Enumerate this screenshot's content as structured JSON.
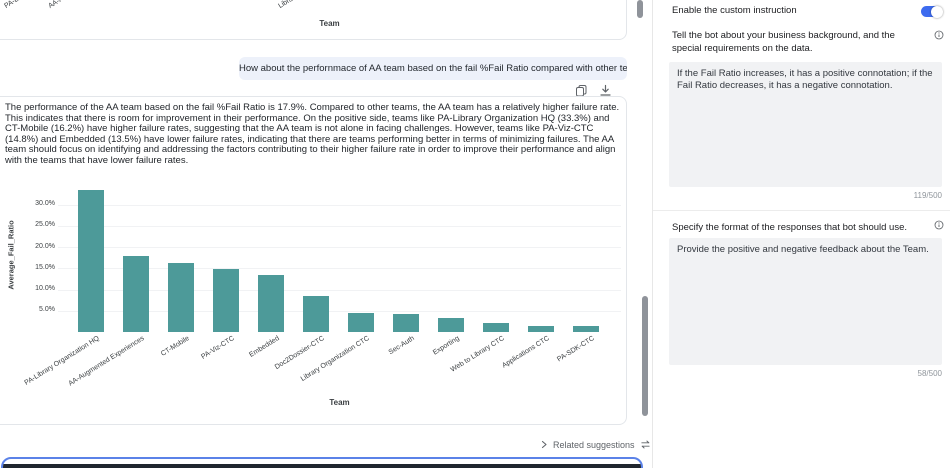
{
  "colors": {
    "bar": "#4d9a99",
    "toggle_on": "#3d6bef",
    "input_border": "#5b82e8",
    "bubble_bg": "#edf1fa"
  },
  "previous_chart": {
    "visible_x_labels": [
      "PA-Library Organization HQ",
      "AA-Augmented Experiences",
      "Library Organization CTC"
    ],
    "xlabel": "Team"
  },
  "chat": {
    "user_message": "How about the perfornmace of AA team based on the fail %Fail Ratio compared with other team",
    "response_text": "The performance of the AA team based on the fail %Fail Ratio is 17.9%. Compared to other teams, the AA team has a relatively higher failure rate. This indicates that there is room for improvement in their performance. On the positive side, teams like PA-Library Organization HQ (33.3%) and CT-Mobile (16.2%) have higher failure rates, suggesting that the AA team is not alone in facing challenges. However, teams like PA-Viz-CTC (14.8%) and Embedded (13.5%) have lower failure rates, indicating that there are teams performing better in terms of minimizing failures. The AA team should focus on identifying and addressing the factors contributing to their higher failure rate in order to improve their performance and align with the teams that have lower failure rates.",
    "related_suggestions_label": "Related suggestions"
  },
  "chart_data": {
    "type": "bar",
    "categories": [
      "PA-Library Organization HQ",
      "AA-Augmented Experiences",
      "CT-Mobile",
      "PA-Viz-CTC",
      "Embedded",
      "Doc2Dossier-CTC",
      "Library Organization CTC",
      "Sec-Auth",
      "Exporting",
      "Web to Library CTC",
      "Applications CTC",
      "PA-SDK-CTC"
    ],
    "values": [
      33.3,
      17.9,
      16.2,
      14.8,
      13.5,
      8.4,
      4.5,
      4.3,
      3.2,
      2.2,
      1.5,
      1.3
    ],
    "xlabel": "Team",
    "ylabel": "Average_Fail_Ratio",
    "yticks": [
      "30.0%",
      "25.0%",
      "20.0%",
      "15.0%",
      "10.0%",
      "5.0%"
    ],
    "ylim": [
      0,
      36
    ],
    "grid": true,
    "legend": "none",
    "bar_color": "#4d9a99"
  },
  "sidebar": {
    "toggle_label": "Enable the custom instruction",
    "toggle_on": true,
    "background_section": {
      "label": "Tell the bot about your business background, and the special requirements on the data.",
      "value": "If the Fail Ratio increases, it has a positive connotation; if the Fail Ratio decreases, it has a negative connotation.",
      "counter": "119/500"
    },
    "format_section": {
      "label": "Specify the format of the responses that bot should use.",
      "value": "Provide the positive and negative feedback about the Team.",
      "counter": "58/500"
    }
  }
}
